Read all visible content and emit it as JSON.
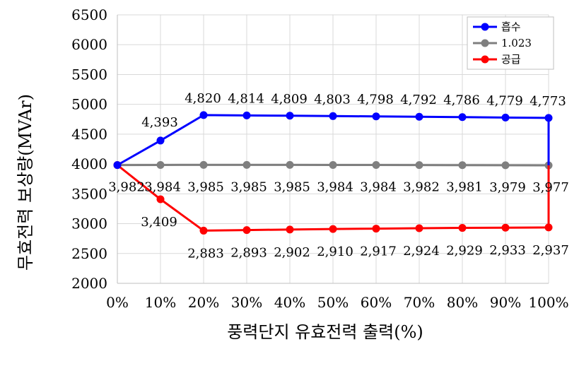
{
  "chart_data": {
    "type": "line",
    "xlabel": "풍력단지 유효전력 출력(%)",
    "ylabel": "무효전력 보상량(MVAr)",
    "ylim": [
      2000,
      6500
    ],
    "yticks": [
      "2000",
      "2500",
      "3000",
      "3500",
      "4000",
      "4500",
      "5000",
      "5500",
      "6000",
      "6500"
    ],
    "categories": [
      "0%",
      "10%",
      "20%",
      "30%",
      "40%",
      "50%",
      "60%",
      "70%",
      "80%",
      "90%",
      "100%"
    ],
    "grid": true,
    "legend_position": "top-right",
    "series": [
      {
        "name": "흡수",
        "color": "#0000ff",
        "values": [
          3982,
          4393,
          4820,
          4814,
          4809,
          4803,
          4798,
          4792,
          4786,
          4779,
          4773
        ],
        "labels": [
          "",
          "4,393",
          "4,820",
          "4,814",
          "4,809",
          "4,803",
          "4,798",
          "4,792",
          "4,786",
          "4,779",
          "4,773"
        ],
        "end_drop_to": 3977
      },
      {
        "name": "1.023",
        "color": "#7f7f7f",
        "values": [
          3982,
          3984,
          3985,
          3985,
          3985,
          3984,
          3984,
          3982,
          3981,
          3979,
          3977
        ],
        "labels": [
          "3,982",
          "3,984",
          "3,985",
          "3,985",
          "3,985",
          "3,984",
          "3,984",
          "3,982",
          "3,981",
          "3,979",
          "3,977"
        ]
      },
      {
        "name": "공급",
        "color": "#ff0000",
        "values": [
          3982,
          3409,
          2883,
          2893,
          2902,
          2910,
          2917,
          2924,
          2929,
          2933,
          2937
        ],
        "labels": [
          "",
          "3,409",
          "2,883",
          "2,893",
          "2,902",
          "2,910",
          "2,917",
          "2,924",
          "2,929",
          "2,933",
          "2,937"
        ],
        "end_rise_to": 3977
      }
    ]
  }
}
